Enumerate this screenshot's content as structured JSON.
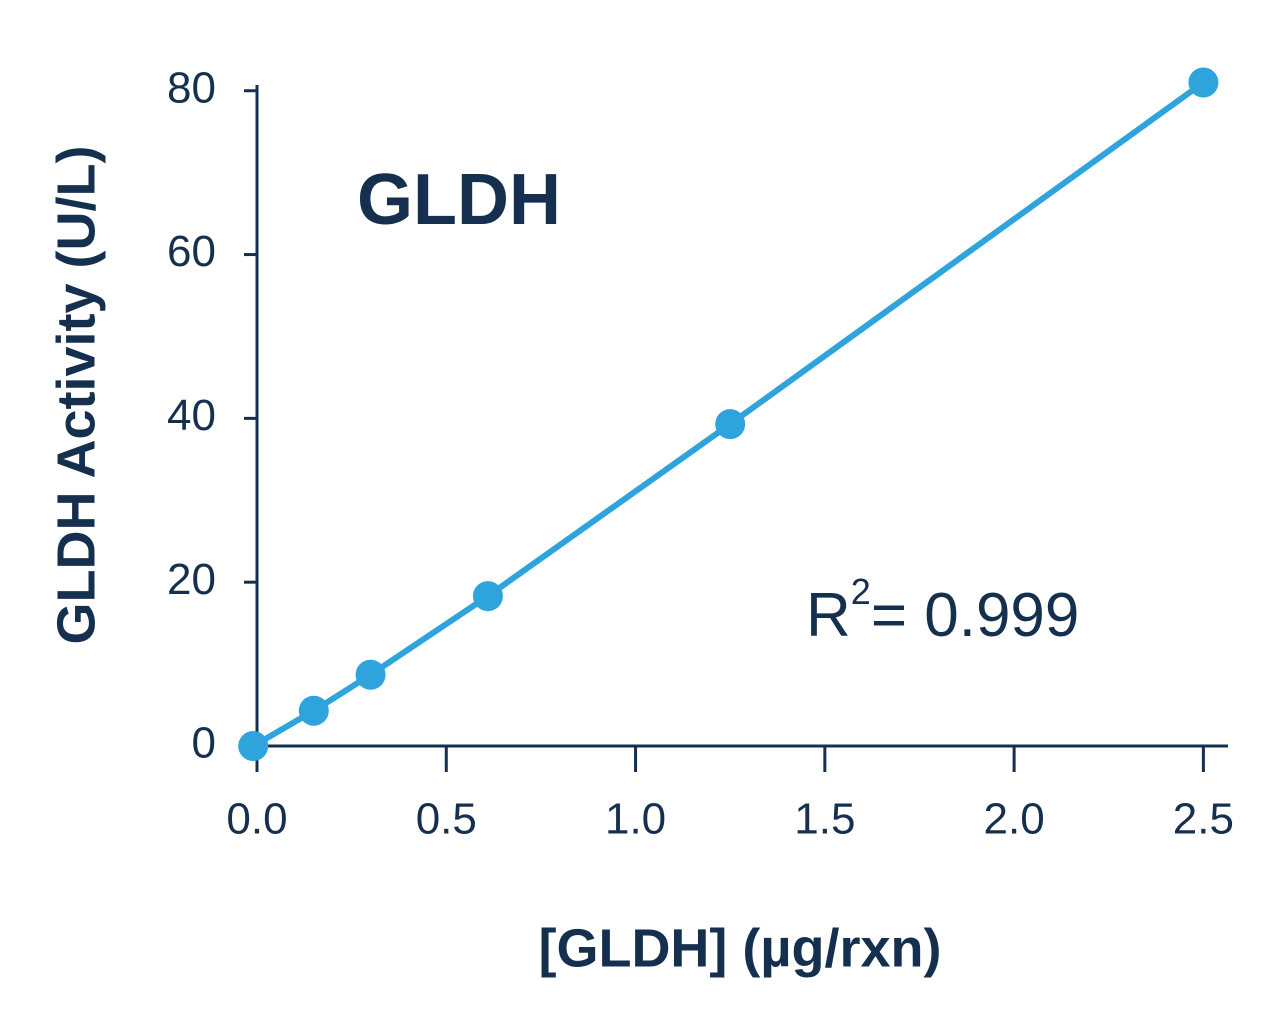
{
  "chart_data": {
    "type": "line",
    "title": "GLDH",
    "x_label": "[GLDH] (µg/rxn)",
    "y_label": "GLDH Activity (U/L)",
    "annotation": {
      "text": "R",
      "superscript": "2",
      "rest": "= 0.999"
    },
    "x": [
      -0.01,
      0.15,
      0.3,
      0.61,
      1.25,
      2.5
    ],
    "series": [
      {
        "color": "#2ea3dc",
        "values": [
          0,
          4.3,
          8.7,
          18.3,
          39.3,
          81
        ]
      }
    ],
    "xlim": [
      0,
      2.565
    ],
    "ylim": [
      0,
      80.7
    ],
    "xticks": [
      {
        "value": 0,
        "label": "0.0"
      },
      0.5,
      {
        "value": 1,
        "label": "1.0"
      },
      1.5,
      {
        "value": 2,
        "label": "2.0"
      },
      2.5
    ],
    "yticks": [
      0,
      20,
      40,
      60,
      80
    ]
  }
}
